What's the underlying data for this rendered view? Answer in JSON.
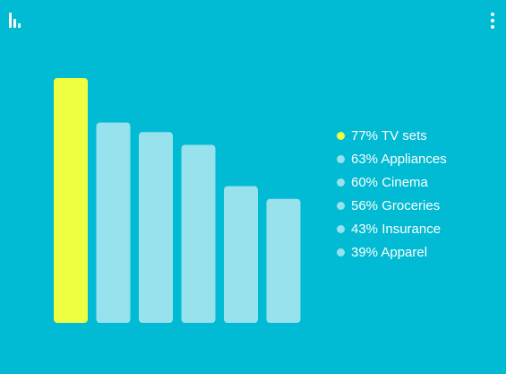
{
  "colors": {
    "background": "#00bbd3",
    "highlight": "#eeff41",
    "bar": "#97e2ec",
    "text": "#ffffff"
  },
  "icons": {
    "top_left": "bar-chart-icon",
    "top_right": "more-vert-icon"
  },
  "chart_data": {
    "type": "bar",
    "categories": [
      "TV sets",
      "Appliances",
      "Cinema",
      "Groceries",
      "Insurance",
      "Apparel"
    ],
    "values": [
      77,
      63,
      60,
      56,
      43,
      39
    ],
    "unit": "%",
    "highlight_index": 0,
    "title": "",
    "xlabel": "",
    "ylabel": "",
    "ylim": [
      0,
      77
    ],
    "grid": false,
    "axes_visible": false,
    "legend_position": "right"
  },
  "legend": [
    {
      "label": "77% TV sets",
      "highlight": true
    },
    {
      "label": "63% Appliances",
      "highlight": false
    },
    {
      "label": "60% Cinema",
      "highlight": false
    },
    {
      "label": "56% Groceries",
      "highlight": false
    },
    {
      "label": "43% Insurance",
      "highlight": false
    },
    {
      "label": "39% Apparel",
      "highlight": false
    }
  ]
}
